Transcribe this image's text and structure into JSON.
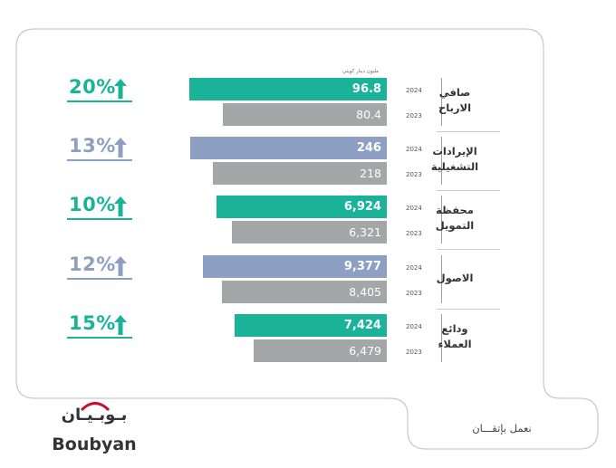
{
  "colors": {
    "teal": "#1ab39a",
    "blue": "#8e9fc4",
    "grey": "#a5a6a8",
    "frame": "#c5c9cd"
  },
  "unit_note": "مليون دينار كويتي",
  "years": {
    "current": "2024",
    "previous": "2023"
  },
  "chart_data": {
    "type": "bar",
    "orientation": "horizontal",
    "unit": "مليون دينار كويتي",
    "series_years": [
      "2024",
      "2023"
    ],
    "rows": [
      {
        "label_line1": "صافي",
        "label_line2": "الارباح",
        "current": 96.8,
        "previous": 80.4,
        "current_label": "96.8",
        "previous_label": "80.4",
        "growth": "20",
        "color": "teal",
        "scale_max": 120
      },
      {
        "label_line1": "الإيرادات",
        "label_line2": "التشغيلية",
        "current": 246,
        "previous": 218,
        "current_label": "246",
        "previous_label": "218",
        "growth": "13",
        "color": "blue",
        "scale_max": 306
      },
      {
        "label_line1": "محفظة",
        "label_line2": "التمويل",
        "current": 6924,
        "previous": 6321,
        "current_label": "6,924",
        "previous_label": "6,321",
        "growth": "10",
        "color": "teal",
        "scale_max": 9970
      },
      {
        "label_line1": "",
        "label_line2": "الاصول",
        "current": 9377,
        "previous": 8405,
        "current_label": "9,377",
        "previous_label": "8,405",
        "growth": "12",
        "color": "blue",
        "scale_max": 12500
      },
      {
        "label_line1": "ودائع",
        "label_line2": "العملاء",
        "current": 7424,
        "previous": 6479,
        "current_label": "7,424",
        "previous_label": "6,479",
        "growth": "15",
        "color": "teal",
        "scale_max": 11900
      }
    ]
  },
  "footer": {
    "logo_ar": "بـوبـيـان",
    "logo_en": "Boubyan",
    "tagline": "نعمل بإتقـــان"
  }
}
